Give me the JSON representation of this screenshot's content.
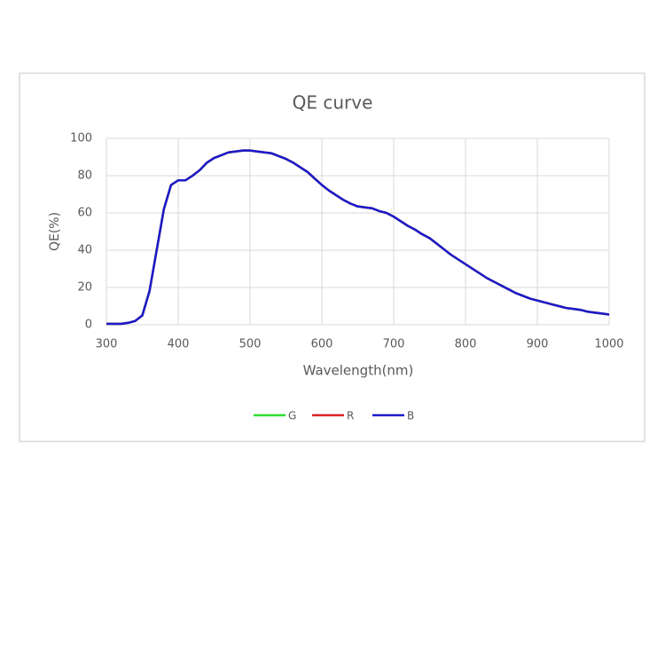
{
  "chart_data": {
    "type": "line",
    "title": "QE curve",
    "xlabel": "Wavelength(nm)",
    "ylabel": "QE(%)",
    "x": [
      300,
      310,
      320,
      330,
      340,
      350,
      360,
      370,
      380,
      390,
      400,
      410,
      420,
      430,
      440,
      450,
      460,
      470,
      480,
      490,
      500,
      510,
      520,
      530,
      540,
      550,
      560,
      570,
      580,
      590,
      600,
      610,
      620,
      630,
      640,
      650,
      660,
      670,
      680,
      690,
      700,
      710,
      720,
      730,
      740,
      750,
      760,
      770,
      780,
      790,
      800,
      810,
      820,
      830,
      840,
      850,
      860,
      870,
      880,
      890,
      900,
      910,
      920,
      930,
      940,
      950,
      960,
      970,
      980,
      990,
      1000
    ],
    "series": [
      {
        "name": "G",
        "color": "#33dd33",
        "values": [
          0.5,
          0.5,
          0.5,
          1,
          2,
          5,
          18,
          40,
          62,
          75,
          77.5,
          77.5,
          80,
          83,
          87,
          89.5,
          91,
          92.5,
          93,
          93.5,
          93.5,
          93,
          92.5,
          92,
          90.5,
          89,
          87,
          84.5,
          82,
          78.5,
          75,
          72,
          69.5,
          67,
          65,
          63.5,
          63,
          62.5,
          61,
          60,
          58,
          55.5,
          53,
          51,
          48.5,
          46.5,
          43.5,
          40.5,
          37.5,
          35,
          32.5,
          30,
          27.5,
          25,
          23,
          21,
          19,
          17,
          15.5,
          14,
          13,
          12,
          11,
          10,
          9,
          8.5,
          8,
          7,
          6.5,
          6,
          5.5
        ]
      },
      {
        "name": "R",
        "color": "#dd2222",
        "values": [
          0.5,
          0.5,
          0.5,
          1,
          2,
          5,
          18,
          40,
          62,
          75,
          77.5,
          77.5,
          80,
          83,
          87,
          89.5,
          91,
          92.5,
          93,
          93.5,
          93.5,
          93,
          92.5,
          92,
          90.5,
          89,
          87,
          84.5,
          82,
          78.5,
          75,
          72,
          69.5,
          67,
          65,
          63.5,
          63,
          62.5,
          61,
          60,
          58,
          55.5,
          53,
          51,
          48.5,
          46.5,
          43.5,
          40.5,
          37.5,
          35,
          32.5,
          30,
          27.5,
          25,
          23,
          21,
          19,
          17,
          15.5,
          14,
          13,
          12,
          11,
          10,
          9,
          8.5,
          8,
          7,
          6.5,
          6,
          5.5
        ]
      },
      {
        "name": "B",
        "color": "#1a1acc",
        "values": [
          0.5,
          0.5,
          0.5,
          1,
          2,
          5,
          18,
          40,
          62,
          75,
          77.5,
          77.5,
          80,
          83,
          87,
          89.5,
          91,
          92.5,
          93,
          93.5,
          93.5,
          93,
          92.5,
          92,
          90.5,
          89,
          87,
          84.5,
          82,
          78.5,
          75,
          72,
          69.5,
          67,
          65,
          63.5,
          63,
          62.5,
          61,
          60,
          58,
          55.5,
          53,
          51,
          48.5,
          46.5,
          43.5,
          40.5,
          37.5,
          35,
          32.5,
          30,
          27.5,
          25,
          23,
          21,
          19,
          17,
          15.5,
          14,
          13,
          12,
          11,
          10,
          9,
          8.5,
          8,
          7,
          6.5,
          6,
          5.5
        ]
      }
    ],
    "xlim": [
      300,
      1000
    ],
    "xticks": [
      300,
      400,
      500,
      600,
      700,
      800,
      900,
      1000
    ],
    "ylim": [
      0,
      100
    ],
    "yticks": [
      0,
      20,
      40,
      60,
      80,
      100
    ],
    "grid": true
  }
}
